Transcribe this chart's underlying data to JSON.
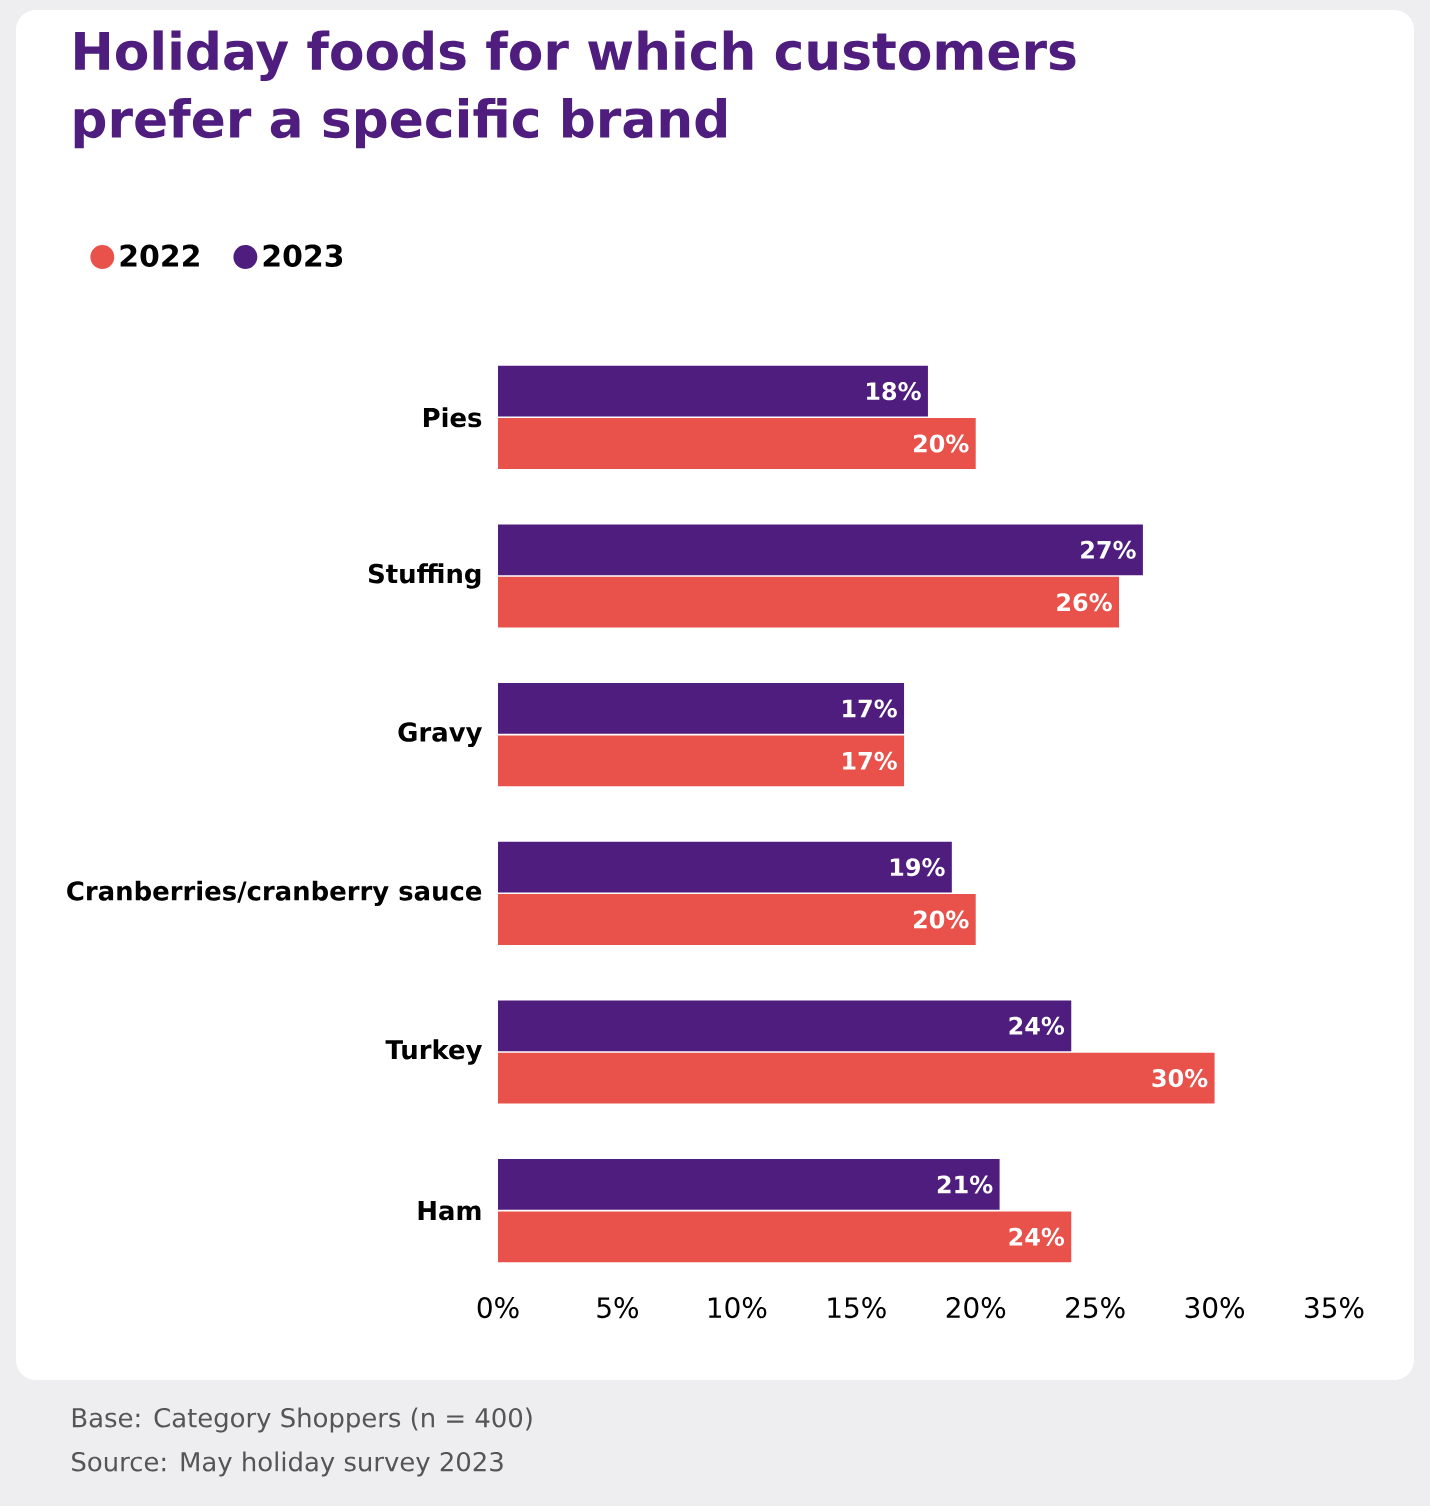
{
  "chart_data": {
    "type": "bar",
    "orientation": "horizontal",
    "title": "Holiday foods for which customers prefer a specific brand",
    "categories": [
      "Pies",
      "Stuffing",
      "Gravy",
      "Cranberries/cranberry sauce",
      "Turkey",
      "Ham"
    ],
    "series": [
      {
        "name": "2022",
        "color": "#e8524a",
        "values": [
          20,
          26,
          17,
          20,
          30,
          24
        ],
        "value_labels": [
          "20%",
          "26%",
          "17%",
          "20%",
          "30%",
          "24%"
        ]
      },
      {
        "name": "2023",
        "color": "#4f1d7e",
        "values": [
          18,
          27,
          17,
          19,
          24,
          21
        ],
        "value_labels": [
          "18%",
          "27%",
          "17%",
          "19%",
          "24%",
          "21%"
        ]
      }
    ],
    "xlim": [
      0,
      35
    ],
    "xticks": [
      {
        "value": 0,
        "label": "0%"
      },
      {
        "value": 5,
        "label": "5%"
      },
      {
        "value": 10,
        "label": "10%"
      },
      {
        "value": 15,
        "label": "15%"
      },
      {
        "value": 20,
        "label": "20%"
      },
      {
        "value": 25,
        "label": "25%"
      },
      {
        "value": 30,
        "label": "30%"
      },
      {
        "value": 35,
        "label": "35%"
      }
    ],
    "grid": false,
    "legend": "top left",
    "annotations": [
      "Base: Category Shoppers (n = 400)",
      "Source: May holiday survey 2023"
    ]
  }
}
